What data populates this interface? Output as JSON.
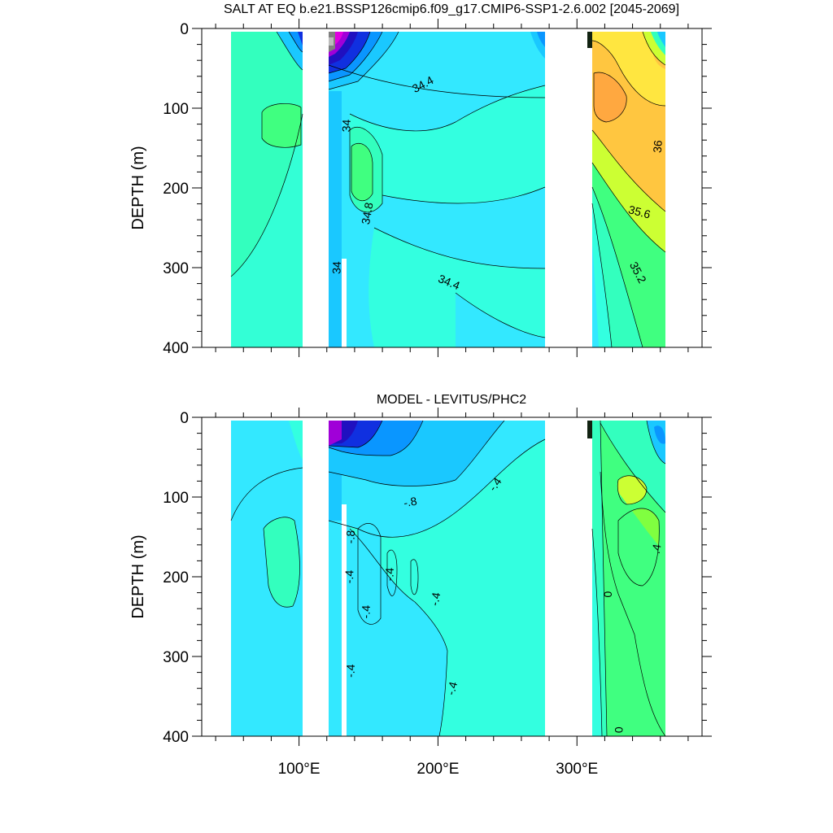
{
  "chart_data": [
    {
      "type": "heatmap",
      "title": "SALT AT EQ b.e21.BSSP126cmip6.f09_g17.CMIP6-SSP1-2.6.002 [2045-2069]",
      "xlabel": "",
      "ylabel": "DEPTH (m)",
      "xlim": [
        30,
        390
      ],
      "ylim": [
        400,
        0
      ],
      "y_reversed": true,
      "xticks": [
        100,
        200,
        300
      ],
      "xtick_labels": [
        "100°E",
        "200°E",
        "300°E"
      ],
      "yticks": [
        0,
        100,
        200,
        300,
        400
      ],
      "ytick_labels": [
        "0",
        "100",
        "200",
        "300",
        "400"
      ],
      "land_gaps_lon": [
        [
          98,
          118
        ],
        [
          279,
          314
        ]
      ],
      "contour_labels": [
        {
          "text": "34.4",
          "lon": 189,
          "depth": 70,
          "angle": -28
        },
        {
          "text": "34",
          "lon": 134,
          "depth": 122,
          "angle": -88
        },
        {
          "text": "34.8",
          "lon": 149,
          "depth": 232,
          "angle": -80
        },
        {
          "text": "34",
          "lon": 127,
          "depth": 300,
          "angle": -88
        },
        {
          "text": "34.4",
          "lon": 208,
          "depth": 318,
          "angle": 22
        },
        {
          "text": "36",
          "lon": 358,
          "depth": 148,
          "angle": -85
        },
        {
          "text": "35.6",
          "lon": 345,
          "depth": 230,
          "angle": 15
        },
        {
          "text": "35.2",
          "lon": 344,
          "depth": 306,
          "angle": 62
        }
      ]
    },
    {
      "type": "heatmap",
      "title": "MODEL - LEVITUS/PHC2",
      "xlabel": "",
      "ylabel": "DEPTH (m)",
      "xlim": [
        30,
        390
      ],
      "ylim": [
        400,
        0
      ],
      "y_reversed": true,
      "xticks": [
        100,
        200,
        300
      ],
      "xtick_labels": [
        "100°E",
        "200°E",
        "300°E"
      ],
      "yticks": [
        0,
        100,
        200,
        300,
        400
      ],
      "ytick_labels": [
        "0",
        "100",
        "200",
        "300",
        "400"
      ],
      "land_gaps_lon": [
        [
          98,
          118
        ],
        [
          279,
          314
        ]
      ],
      "contour_labels": [
        {
          "text": "-.4",
          "lon": 241,
          "depth": 84,
          "angle": -55
        },
        {
          "text": "-.8",
          "lon": 180,
          "depth": 106,
          "angle": -10
        },
        {
          "text": "-.8",
          "lon": 137,
          "depth": 150,
          "angle": -88
        },
        {
          "text": "-.4",
          "lon": 165,
          "depth": 197,
          "angle": -88
        },
        {
          "text": "-.4",
          "lon": 136,
          "depth": 200,
          "angle": -88
        },
        {
          "text": "-.4",
          "lon": 198,
          "depth": 228,
          "angle": -80
        },
        {
          "text": "-.4",
          "lon": 148,
          "depth": 244,
          "angle": -88
        },
        {
          "text": "-.4",
          "lon": 137,
          "depth": 318,
          "angle": -88
        },
        {
          "text": "-.4",
          "lon": 210,
          "depth": 340,
          "angle": -75
        },
        {
          "text": ".4",
          "lon": 357,
          "depth": 165,
          "angle": -80
        },
        {
          "text": "0",
          "lon": 322,
          "depth": 222,
          "angle": -90
        },
        {
          "text": "0",
          "lon": 330,
          "depth": 392,
          "angle": -90
        }
      ]
    }
  ]
}
